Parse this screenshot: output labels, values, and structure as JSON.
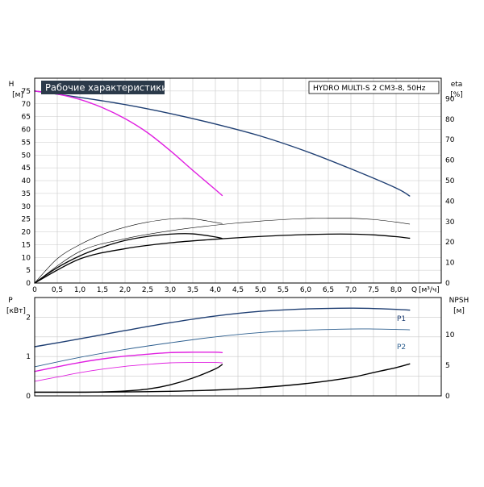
{
  "chart": {
    "title": "Рабочие характеристики",
    "model": "HYDRO MULTI-S 2 CM3-8, 50Hz",
    "colors": {
      "blue": "#1f3f73",
      "blue_light": "#2d5f8f",
      "magenta": "#e020e0",
      "black": "#000000",
      "grid": "#c8c8c8",
      "title_bg": "#2b3a4a"
    }
  },
  "chart_data": [
    {
      "type": "line",
      "panel": "head-efficiency",
      "ylabel_left": "H",
      "yunit_left": "[м]",
      "ylabel_right": "eta",
      "yunit_right": "[%]",
      "xlabel": "Q",
      "xunit": "[м³/ч]",
      "xlim": [
        0,
        9
      ],
      "ylim_left": [
        0,
        80
      ],
      "yticks_left": [
        0,
        5,
        10,
        15,
        20,
        25,
        30,
        35,
        40,
        45,
        50,
        55,
        60,
        65,
        70,
        75
      ],
      "ylim_right": [
        0,
        100
      ],
      "yticks_right": [
        0,
        10,
        20,
        30,
        40,
        50,
        60,
        70,
        80,
        90
      ],
      "xticks": [
        0,
        0.5,
        1.0,
        1.5,
        2.0,
        2.5,
        3.0,
        3.5,
        4.0,
        4.5,
        5.0,
        5.5,
        6.0,
        6.5,
        7.0,
        7.5,
        8.0
      ],
      "xticklabels": [
        "0",
        "0,5",
        "1,0",
        "1,5",
        "2,0",
        "2,5",
        "3,0",
        "3,5",
        "4,0",
        "4,5",
        "5,0",
        "5,5",
        "6,0",
        "6,5",
        "7,0",
        "7,5",
        "8,0"
      ],
      "grid": true,
      "series": [
        {
          "color": "blue",
          "axis": "left",
          "width": 1.4,
          "x": [
            0,
            1,
            2,
            3,
            4,
            5,
            6,
            7,
            8,
            8.3
          ],
          "y": [
            75,
            72.5,
            69.7,
            66.2,
            62.1,
            57.4,
            51.5,
            44.6,
            37.1,
            34
          ]
        },
        {
          "color": "magenta",
          "axis": "left",
          "width": 1.4,
          "x": [
            0,
            0.5,
            1,
            1.5,
            2,
            2.5,
            3,
            3.5,
            4,
            4.15
          ],
          "y": [
            75,
            73.8,
            71.7,
            68.5,
            64.2,
            58.7,
            51.7,
            44,
            36.5,
            34.2
          ]
        },
        {
          "color": "black",
          "axis": "left",
          "width": 1.3,
          "x": [
            0,
            0.5,
            1,
            1.5,
            2,
            2.5,
            3,
            3.5,
            4,
            4.15
          ],
          "y": [
            0,
            6,
            10.6,
            14,
            16.6,
            18.2,
            19.1,
            19.2,
            18,
            17.4
          ]
        },
        {
          "color": "black",
          "axis": "left",
          "width": 1.3,
          "x": [
            0,
            1,
            2,
            3,
            4,
            5,
            6,
            6.5,
            7,
            7.5,
            8,
            8.3
          ],
          "y": [
            0,
            9.4,
            13.4,
            15.7,
            17.1,
            18.2,
            18.9,
            19.1,
            19.1,
            18.8,
            18.1,
            17.5
          ]
        },
        {
          "color": "black",
          "axis": "left",
          "width": 0.6,
          "x": [
            0,
            0.5,
            1,
            1.5,
            2,
            2.5,
            3,
            3.25,
            3.5,
            3.9,
            4.15
          ],
          "y": [
            0,
            9.5,
            15,
            19,
            21.8,
            23.8,
            25,
            25.2,
            25.1,
            24,
            23.2
          ]
        },
        {
          "color": "black",
          "axis": "left",
          "width": 0.6,
          "x": [
            0,
            1,
            2,
            3,
            4,
            5,
            6,
            6.5,
            7,
            7.5,
            8,
            8.3
          ],
          "y": [
            0,
            12.3,
            17.3,
            20.4,
            22.6,
            24.2,
            25.2,
            25.4,
            25.3,
            24.8,
            23.8,
            23
          ]
        }
      ]
    },
    {
      "type": "line",
      "panel": "power-npsh",
      "ylabel_left": "P",
      "yunit_left": "[кВт]",
      "ylabel_right": "NPSH",
      "yunit_right": "[м]",
      "xlim": [
        0,
        9
      ],
      "ylim_left": [
        0,
        2.5
      ],
      "yticks_left": [
        0,
        1,
        2
      ],
      "ylim_right": [
        0,
        16
      ],
      "yticks_right": [
        0,
        5,
        10
      ],
      "grid": true,
      "series": [
        {
          "name": "P1",
          "color": "blue",
          "axis": "left",
          "width": 1.4,
          "x": [
            0,
            1,
            2,
            3,
            4,
            5,
            6,
            7,
            7.5,
            8,
            8.3
          ],
          "y": [
            1.25,
            1.45,
            1.66,
            1.86,
            2.03,
            2.15,
            2.21,
            2.23,
            2.22,
            2.2,
            2.18
          ]
        },
        {
          "name": "P2",
          "color": "blue_light",
          "axis": "left",
          "width": 0.9,
          "x": [
            0,
            1,
            2,
            3,
            4,
            5,
            6,
            7,
            7.5,
            8,
            8.3
          ],
          "y": [
            0.74,
            0.98,
            1.18,
            1.35,
            1.5,
            1.61,
            1.67,
            1.7,
            1.7,
            1.69,
            1.68
          ]
        },
        {
          "color": "magenta",
          "axis": "left",
          "width": 1.4,
          "x": [
            0,
            0.5,
            1,
            1.5,
            2,
            2.5,
            3,
            3.5,
            4,
            4.15
          ],
          "y": [
            0.62,
            0.74,
            0.85,
            0.94,
            1.01,
            1.06,
            1.1,
            1.11,
            1.11,
            1.1
          ]
        },
        {
          "color": "magenta",
          "axis": "left",
          "width": 0.9,
          "x": [
            0,
            0.5,
            1,
            1.5,
            2,
            2.5,
            3,
            3.5,
            4,
            4.15
          ],
          "y": [
            0.37,
            0.48,
            0.59,
            0.68,
            0.75,
            0.8,
            0.84,
            0.85,
            0.85,
            0.84
          ]
        },
        {
          "color": "black",
          "axis": "right",
          "width": 1.4,
          "x": [
            0,
            1,
            1.5,
            2,
            2.5,
            3,
            3.5,
            4,
            4.15
          ],
          "y": [
            0.6,
            0.6,
            0.65,
            0.8,
            1.1,
            1.8,
            2.9,
            4.4,
            5.1
          ]
        },
        {
          "color": "black",
          "axis": "right",
          "width": 1.4,
          "x": [
            0,
            1,
            2,
            3,
            4,
            5,
            6,
            7,
            7.5,
            8,
            8.3
          ],
          "y": [
            0.6,
            0.6,
            0.65,
            0.75,
            0.95,
            1.35,
            2,
            3,
            3.8,
            4.6,
            5.2
          ]
        }
      ]
    }
  ]
}
